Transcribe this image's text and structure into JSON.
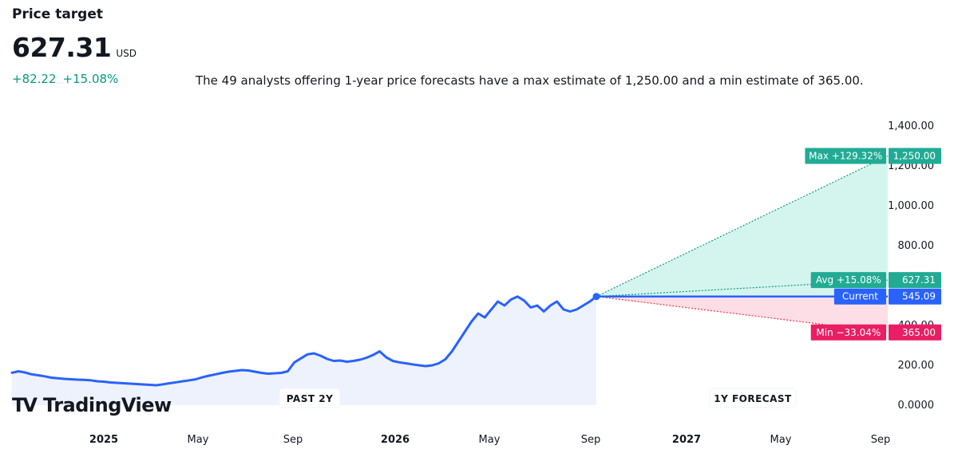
{
  "header": {
    "title": "Price target",
    "price": "627.31",
    "currency": "USD",
    "change_abs": "+82.22",
    "change_pct": "+15.08%",
    "description": "The 49 analysts offering 1-year price forecasts have a max estimate of 1,250.00 and a min estimate of 365.00."
  },
  "branding": {
    "logo_mark": "TV",
    "logo_text": "TradingView"
  },
  "colors": {
    "line": "#2962ff",
    "green": "#089981",
    "teal_label": "#22ab94",
    "red_label": "#f23645",
    "min_label": "#e91e63",
    "upside_fill": "#d4f5ee",
    "downside_fill": "#fddde6",
    "history_fill": "#eef2fc"
  },
  "chart_data": {
    "type": "line",
    "ylim": [
      0,
      1400
    ],
    "y_ticks": [
      "0.0000",
      "200.00",
      "400.00",
      "800.00",
      "1,000.00",
      "1,200.00",
      "1,400.00"
    ],
    "x_ticks": [
      {
        "label": "2025",
        "bold": true
      },
      {
        "label": "May",
        "bold": false
      },
      {
        "label": "Sep",
        "bold": false
      },
      {
        "label": "2026",
        "bold": true
      },
      {
        "label": "May",
        "bold": false
      },
      {
        "label": "Sep",
        "bold": false
      },
      {
        "label": "2027",
        "bold": true
      },
      {
        "label": "May",
        "bold": false
      },
      {
        "label": "Sep",
        "bold": false
      }
    ],
    "period_labels": {
      "past": "PAST 2Y",
      "forecast": "1Y FORECAST"
    },
    "history": {
      "start": "2024-09",
      "end": "2026-09",
      "values": [
        163,
        170,
        164,
        155,
        150,
        145,
        138,
        135,
        132,
        130,
        128,
        127,
        125,
        120,
        118,
        114,
        112,
        110,
        108,
        106,
        104,
        102,
        100,
        105,
        110,
        115,
        120,
        125,
        130,
        140,
        148,
        155,
        162,
        168,
        172,
        176,
        174,
        168,
        162,
        158,
        160,
        162,
        170,
        215,
        235,
        255,
        260,
        248,
        232,
        222,
        224,
        218,
        222,
        228,
        238,
        252,
        270,
        240,
        222,
        215,
        210,
        205,
        200,
        196,
        200,
        210,
        230,
        270,
        320,
        370,
        420,
        460,
        440,
        480,
        520,
        500,
        530,
        545,
        525,
        490,
        500,
        470,
        500,
        520,
        480,
        470,
        480,
        500,
        520,
        545
      ]
    },
    "forecast": {
      "current": {
        "label": "Current",
        "value": 545.09,
        "value_text": "545.09"
      },
      "max": {
        "label": "Max +129.32%",
        "value": 1250,
        "value_text": "1,250.00"
      },
      "avg": {
        "label": "Avg +15.08%",
        "value": 627.31,
        "value_text": "627.31"
      },
      "min": {
        "label": "Min −33.04%",
        "value": 365,
        "value_text": "365.00"
      }
    }
  }
}
